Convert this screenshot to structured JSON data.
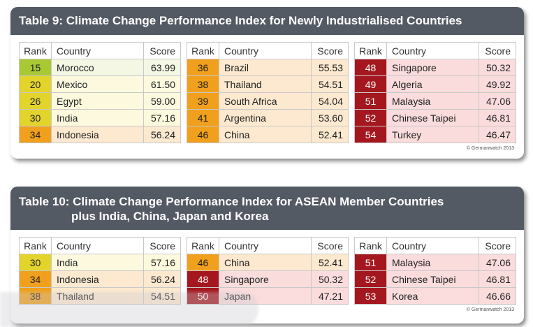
{
  "colors": {
    "header_bg": "#545a64",
    "rank_light_green": "#a8c934",
    "rank_yellow": "#e3d42c",
    "rank_orange": "#f0a01c",
    "rank_dark_red": "#a5171f",
    "row_green": "#f3f7e4",
    "row_yellow": "#fcf9de",
    "row_orange": "#fde9d0",
    "row_red": "#fbdcdc"
  },
  "col_headers": {
    "rank": "Rank",
    "country": "Country",
    "score": "Score"
  },
  "table9": {
    "title": "Table 9: Climate Change Performance Index for Newly Industrialised Countries",
    "copyright": "© Germanwatch 2013",
    "groups": [
      {
        "rows": [
          {
            "rank": "15",
            "country": "Morocco",
            "score": "63.99",
            "tier": "lightgreen"
          },
          {
            "rank": "20",
            "country": "Mexico",
            "score": "61.50",
            "tier": "yellow"
          },
          {
            "rank": "26",
            "country": "Egypt",
            "score": "59.00",
            "tier": "yellow"
          },
          {
            "rank": "30",
            "country": "India",
            "score": "57.16",
            "tier": "yellow"
          },
          {
            "rank": "34",
            "country": "Indonesia",
            "score": "56.24",
            "tier": "orange"
          }
        ]
      },
      {
        "rows": [
          {
            "rank": "36",
            "country": "Brazil",
            "score": "55.53",
            "tier": "orange"
          },
          {
            "rank": "38",
            "country": "Thailand",
            "score": "54.51",
            "tier": "orange"
          },
          {
            "rank": "39",
            "country": "South Africa",
            "score": "54.04",
            "tier": "orange"
          },
          {
            "rank": "41",
            "country": "Argentina",
            "score": "53.60",
            "tier": "orange"
          },
          {
            "rank": "46",
            "country": "China",
            "score": "52.41",
            "tier": "orange"
          }
        ]
      },
      {
        "rows": [
          {
            "rank": "48",
            "country": "Singapore",
            "score": "50.32",
            "tier": "red"
          },
          {
            "rank": "49",
            "country": "Algeria",
            "score": "49.92",
            "tier": "red"
          },
          {
            "rank": "51",
            "country": "Malaysia",
            "score": "47.06",
            "tier": "red"
          },
          {
            "rank": "52",
            "country": "Chinese Taipei",
            "score": "46.81",
            "tier": "red"
          },
          {
            "rank": "54",
            "country": "Turkey",
            "score": "46.47",
            "tier": "red"
          }
        ]
      }
    ]
  },
  "table10": {
    "title_line1": "Table 10: Climate Change Performance Index for ASEAN Member Countries",
    "title_line2": "plus India, China, Japan and Korea",
    "copyright": "© Germanwatch 2013",
    "groups": [
      {
        "rows": [
          {
            "rank": "30",
            "country": "India",
            "score": "57.16",
            "tier": "yellow"
          },
          {
            "rank": "34",
            "country": "Indonesia",
            "score": "56.24",
            "tier": "orange"
          },
          {
            "rank": "38",
            "country": "Thailand",
            "score": "54.51",
            "tier": "orange"
          }
        ]
      },
      {
        "rows": [
          {
            "rank": "46",
            "country": "China",
            "score": "52.41",
            "tier": "orange"
          },
          {
            "rank": "48",
            "country": "Singapore",
            "score": "50.32",
            "tier": "red"
          },
          {
            "rank": "50",
            "country": "Japan",
            "score": "47.21",
            "tier": "red"
          }
        ]
      },
      {
        "rows": [
          {
            "rank": "51",
            "country": "Malaysia",
            "score": "47.06",
            "tier": "red"
          },
          {
            "rank": "52",
            "country": "Chinese Taipei",
            "score": "46.81",
            "tier": "red"
          },
          {
            "rank": "53",
            "country": "Korea",
            "score": "46.66",
            "tier": "red"
          }
        ]
      }
    ]
  }
}
